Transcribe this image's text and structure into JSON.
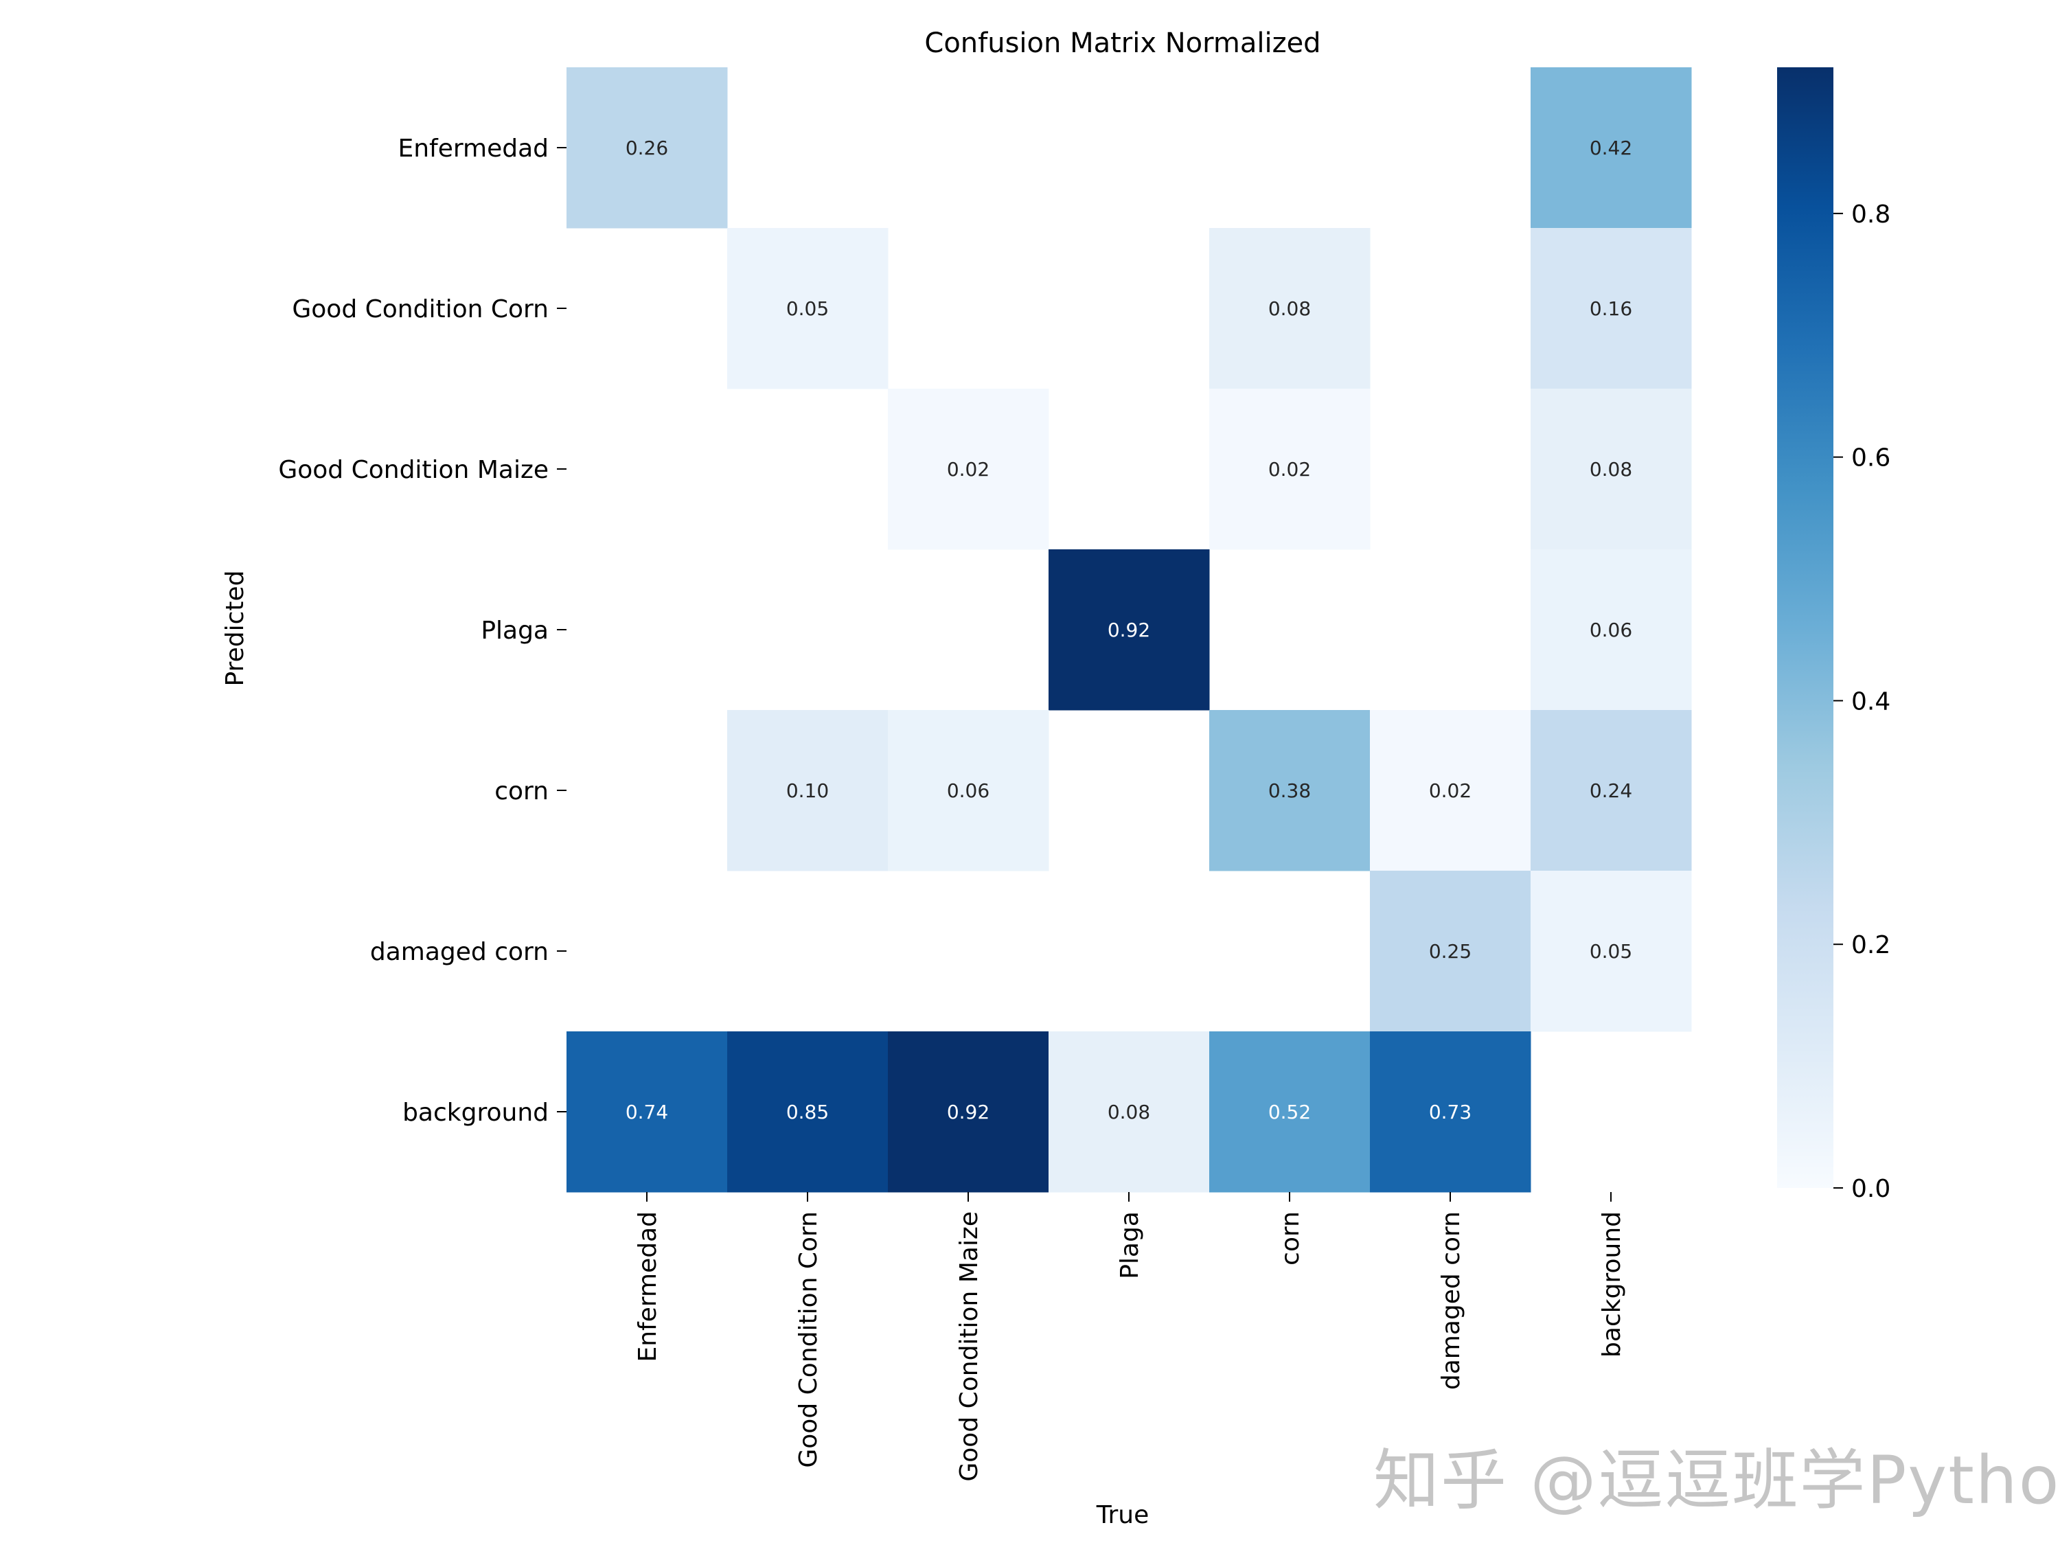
{
  "watermark": "知乎 @逗逗班学Python",
  "chart_data": {
    "type": "heatmap",
    "title": "Confusion Matrix Normalized",
    "xlabel": "True",
    "ylabel": "Predicted",
    "x_categories": [
      "Enfermedad",
      "Good Condition Corn",
      "Good Condition Maize",
      "Plaga",
      "corn",
      "damaged corn",
      "background"
    ],
    "y_categories": [
      "Enfermedad",
      "Good Condition Corn",
      "Good Condition Maize",
      "Plaga",
      "corn",
      "damaged corn",
      "background"
    ],
    "values": [
      [
        0.26,
        null,
        null,
        null,
        null,
        null,
        0.42
      ],
      [
        null,
        0.05,
        null,
        null,
        0.08,
        null,
        0.16
      ],
      [
        null,
        null,
        0.02,
        null,
        0.02,
        null,
        0.08
      ],
      [
        null,
        null,
        null,
        0.92,
        null,
        null,
        0.06
      ],
      [
        null,
        0.1,
        0.06,
        null,
        0.38,
        0.02,
        0.24
      ],
      [
        null,
        null,
        null,
        null,
        null,
        0.25,
        0.05
      ],
      [
        0.74,
        0.85,
        0.92,
        0.08,
        0.52,
        0.73,
        null
      ]
    ],
    "labels": [
      [
        "0.26",
        "",
        "",
        "",
        "",
        "",
        "0.42"
      ],
      [
        "",
        "0.05",
        "",
        "",
        "0.08",
        "",
        "0.16"
      ],
      [
        "",
        "",
        "0.02",
        "",
        "0.02",
        "",
        "0.08"
      ],
      [
        "",
        "",
        "",
        "0.92",
        "",
        "",
        "0.06"
      ],
      [
        "",
        "0.10",
        "0.06",
        "",
        "0.38",
        "0.02",
        "0.24"
      ],
      [
        "",
        "",
        "",
        "",
        "",
        "0.25",
        "0.05"
      ],
      [
        "0.74",
        "0.85",
        "0.92",
        "0.08",
        "0.52",
        "0.73",
        ""
      ]
    ],
    "colorbar": {
      "colormap": "Blues",
      "range": [
        0.0,
        0.92
      ],
      "ticks": [
        0.0,
        0.2,
        0.4,
        0.6,
        0.8
      ],
      "tick_labels": [
        "0.0",
        "0.2",
        "0.4",
        "0.6",
        "0.8"
      ]
    },
    "grid": false
  }
}
